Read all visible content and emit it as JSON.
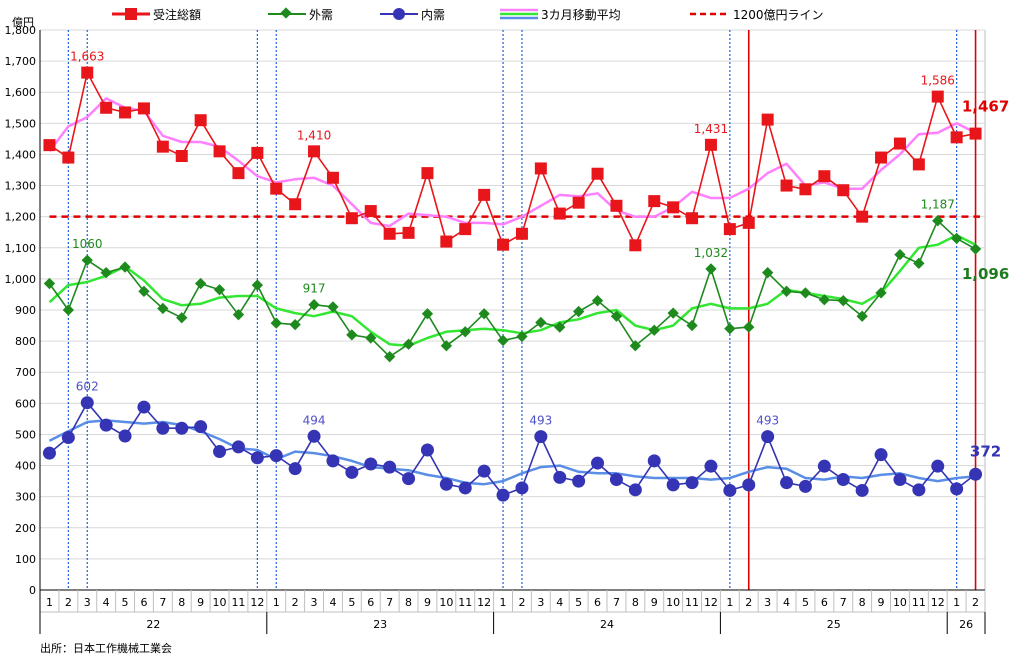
{
  "chart_data": {
    "type": "line",
    "y_unit": "億円",
    "ylim": [
      0,
      1800
    ],
    "ytick_step": 100,
    "grid": "horizontal",
    "legend_position": "top",
    "source": "出所：日本工作機械工業会",
    "month_labels": [
      "1",
      "2",
      "3",
      "4",
      "5",
      "6",
      "7",
      "8",
      "9",
      "10",
      "11",
      "12",
      "1",
      "2",
      "3",
      "4",
      "5",
      "6",
      "7",
      "8",
      "9",
      "10",
      "11",
      "12",
      "1",
      "2",
      "3",
      "4",
      "5",
      "6",
      "7",
      "8",
      "9",
      "10",
      "11",
      "12",
      "1",
      "2",
      "3",
      "4",
      "5",
      "6",
      "7",
      "8",
      "9",
      "10",
      "11",
      "12",
      "1",
      "2"
    ],
    "year_groups": [
      {
        "label": "22",
        "start": 0,
        "end": 11
      },
      {
        "label": "23",
        "start": 12,
        "end": 23
      },
      {
        "label": "24",
        "start": 24,
        "end": 35
      },
      {
        "label": "25",
        "start": 36,
        "end": 47
      },
      {
        "label": "26",
        "start": 48,
        "end": 49
      }
    ],
    "legend": {
      "total": "受注総額",
      "external": "外需",
      "domestic": "内需",
      "ma": "3カ月移動平均",
      "line1200": "1200億円ライン"
    },
    "reference_line": {
      "value": 1200,
      "color": "#e00000"
    },
    "blue_dotted_vlines": [
      1,
      2,
      11,
      12,
      24,
      25,
      36,
      48
    ],
    "red_vlines": [
      37,
      49
    ],
    "series": [
      {
        "key": "total",
        "color": "#e8161b",
        "marker": "square",
        "values": [
          1430,
          1390,
          1663,
          1550,
          1535,
          1548,
          1425,
          1395,
          1510,
          1410,
          1340,
          1405,
          1290,
          1240,
          1410,
          1325,
          1195,
          1218,
          1145,
          1148,
          1340,
          1120,
          1160,
          1270,
          1110,
          1145,
          1355,
          1210,
          1245,
          1338,
          1235,
          1108,
          1250,
          1230,
          1195,
          1431,
          1160,
          1180,
          1512,
          1300,
          1288,
          1330,
          1285,
          1200,
          1390,
          1435,
          1368,
          1586,
          1455,
          1467
        ]
      },
      {
        "key": "external",
        "color": "#1e8a1e",
        "marker": "diamond",
        "values": [
          985,
          900,
          1060,
          1020,
          1038,
          960,
          905,
          875,
          985,
          965,
          885,
          980,
          858,
          853,
          917,
          910,
          820,
          810,
          750,
          790,
          888,
          785,
          830,
          888,
          802,
          815,
          860,
          845,
          895,
          930,
          880,
          785,
          835,
          890,
          850,
          1032,
          840,
          845,
          1020,
          960,
          955,
          933,
          930,
          880,
          955,
          1078,
          1050,
          1187,
          1130,
          1096
        ]
      },
      {
        "key": "domestic",
        "color": "#3434b4",
        "marker": "circle",
        "values": [
          440,
          490,
          602,
          530,
          495,
          588,
          520,
          520,
          525,
          445,
          460,
          425,
          432,
          390,
          494,
          415,
          378,
          405,
          395,
          358,
          450,
          340,
          328,
          382,
          305,
          328,
          493,
          362,
          350,
          408,
          355,
          322,
          415,
          338,
          345,
          398,
          320,
          338,
          493,
          345,
          333,
          398,
          355,
          320,
          435,
          355,
          322,
          398,
          325,
          372
        ]
      },
      {
        "key": "total_ma",
        "color": "#ff80ff",
        "values": [
          1410,
          1490,
          1520,
          1580,
          1550,
          1540,
          1460,
          1440,
          1440,
          1425,
          1380,
          1330,
          1310,
          1320,
          1325,
          1300,
          1240,
          1180,
          1170,
          1210,
          1205,
          1200,
          1180,
          1180,
          1175,
          1200,
          1235,
          1270,
          1265,
          1275,
          1220,
          1200,
          1200,
          1230,
          1280,
          1260,
          1260,
          1290,
          1340,
          1370,
          1300,
          1310,
          1290,
          1290,
          1350,
          1400,
          1465,
          1470,
          1500,
          1470
        ]
      },
      {
        "key": "external_ma",
        "color": "#32e632",
        "values": [
          925,
          980,
          990,
          1010,
          1040,
          995,
          935,
          915,
          920,
          940,
          945,
          945,
          905,
          890,
          880,
          895,
          880,
          830,
          790,
          785,
          810,
          830,
          835,
          840,
          835,
          825,
          835,
          860,
          870,
          890,
          900,
          850,
          835,
          850,
          905,
          920,
          905,
          905,
          920,
          965,
          955,
          945,
          935,
          920,
          955,
          1025,
          1100,
          1110,
          1140,
          1110
        ]
      },
      {
        "key": "domestic_ma",
        "color": "#5a8ee6",
        "marker": "none",
        "values": [
          480,
          510,
          540,
          545,
          540,
          535,
          540,
          530,
          510,
          485,
          455,
          450,
          420,
          445,
          440,
          430,
          415,
          395,
          390,
          385,
          370,
          360,
          345,
          340,
          350,
          375,
          395,
          400,
          380,
          375,
          375,
          365,
          360,
          360,
          360,
          355,
          360,
          380,
          395,
          390,
          360,
          355,
          365,
          360,
          370,
          375,
          360,
          350,
          360,
          365
        ]
      }
    ],
    "annotations": [
      {
        "series": "total",
        "index": 2,
        "text": "1,663"
      },
      {
        "series": "total",
        "index": 14,
        "text": "1,410"
      },
      {
        "series": "total",
        "index": 35,
        "text": "1,431"
      },
      {
        "series": "total",
        "index": 47,
        "text": "1,586"
      },
      {
        "series": "external",
        "index": 2,
        "text": "1060"
      },
      {
        "series": "external",
        "index": 14,
        "text": "917"
      },
      {
        "series": "external",
        "index": 35,
        "text": "1,032"
      },
      {
        "series": "external",
        "index": 47,
        "text": "1,187"
      },
      {
        "series": "domestic",
        "index": 2,
        "text": "602"
      },
      {
        "series": "domestic",
        "index": 14,
        "text": "494"
      },
      {
        "series": "domestic",
        "index": 26,
        "text": "493"
      },
      {
        "series": "domestic",
        "index": 38,
        "text": "493"
      }
    ],
    "last_labels": [
      {
        "series": "total",
        "text": "1,467"
      },
      {
        "series": "external",
        "text": "1,096"
      },
      {
        "series": "domestic",
        "text": "372"
      }
    ]
  }
}
